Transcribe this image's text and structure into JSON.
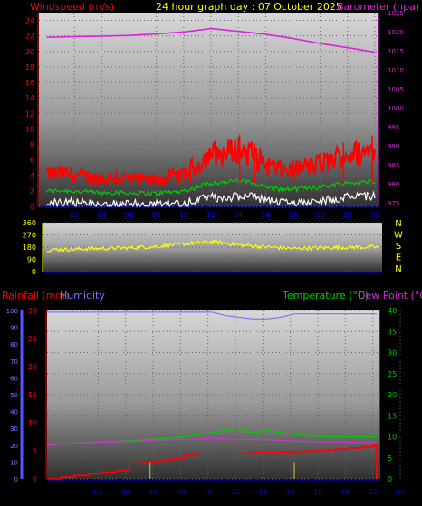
{
  "header": {
    "left_label": "Windspeed (m/s)",
    "center_label": "24 hour graph day : 07 October 2025",
    "right_label": "Barometer (hpa)"
  },
  "colors": {
    "wind": "#ff0000",
    "avg_wind": "#00cc00",
    "gust_low": "#ffffff",
    "barometer": "#dd22dd",
    "direction": "#ffff00",
    "rain": "#ff0000",
    "humidity": "#7777ff",
    "temperature": "#00cc00",
    "dewpoint": "#cc33cc",
    "hour_axis": "#0000ff",
    "rain_axis": "#ff0000",
    "humidity_axis": "#5555ff",
    "temp_axis": "#00cc00"
  },
  "chart_data": [
    {
      "type": "line",
      "title": "24 hour graph day : 07 October 2025",
      "x_ticks": [
        "02",
        "04",
        "06",
        "08",
        "10",
        "12",
        "14",
        "16",
        "18",
        "20",
        "22",
        "00"
      ],
      "y_left_label": "Windspeed (m/s)",
      "y_left_ticks": [
        0,
        2,
        4,
        6,
        8,
        10,
        12,
        14,
        16,
        18,
        20,
        22,
        24
      ],
      "y_left_range": [
        0,
        25
      ],
      "y_right_label": "Barometer (hpa)",
      "y_right_ticks": [
        975,
        980,
        985,
        990,
        995,
        1000,
        1005,
        1010,
        1015,
        1020,
        1025
      ],
      "y_right_range": [
        974,
        1025
      ],
      "series": [
        {
          "name": "Windspeed",
          "x": [
            0,
            1,
            2,
            3,
            4,
            5,
            6,
            7,
            8,
            9,
            10,
            11,
            12,
            13,
            14,
            15,
            16,
            17,
            18,
            19,
            20,
            21,
            22,
            23,
            24
          ],
          "values": [
            3,
            3.2,
            3,
            2.8,
            2.6,
            2.8,
            2.6,
            2.5,
            2.5,
            2.8,
            3,
            4,
            5,
            5,
            5.5,
            5,
            4,
            3.5,
            3.5,
            3.8,
            4,
            4.5,
            5,
            5,
            5.5
          ]
        },
        {
          "name": "Barometer",
          "x": [
            0,
            2,
            4,
            6,
            8,
            10,
            12,
            14,
            16,
            18,
            20,
            22,
            24
          ],
          "values": [
            1018.5,
            1018.7,
            1018.8,
            1019,
            1019.4,
            1019.9,
            1020.8,
            1020.1,
            1019.3,
            1018.2,
            1016.9,
            1015.8,
            1014.6
          ]
        }
      ]
    },
    {
      "type": "line",
      "x_ticks": [
        "02",
        "04",
        "06",
        "08",
        "10",
        "12",
        "14",
        "16",
        "18",
        "20",
        "22",
        "00"
      ],
      "y_left_ticks": [
        0,
        90,
        180,
        270,
        360
      ],
      "y_left_range": [
        0,
        360
      ],
      "y_right_ticks": [
        "N",
        "W",
        "S",
        "E",
        "N"
      ],
      "series": [
        {
          "name": "Wind direction",
          "x": [
            0,
            2,
            4,
            6,
            8,
            10,
            12,
            14,
            16,
            18,
            20,
            22,
            24
          ],
          "values": [
            160,
            165,
            170,
            175,
            185,
            205,
            220,
            195,
            180,
            170,
            175,
            180,
            180
          ]
        }
      ]
    },
    {
      "type": "line",
      "x_ticks": [
        "02",
        "04",
        "06",
        "08",
        "10",
        "12",
        "14",
        "16",
        "18",
        "20",
        "22",
        "00"
      ],
      "y_left_label": "Rainfall (mm)",
      "y_left_ticks": [
        0,
        5,
        10,
        15,
        20,
        25,
        30
      ],
      "y_left_range": [
        0,
        30
      ],
      "y_outer_label": "Humidity",
      "y_outer_ticks": [
        0,
        10,
        20,
        30,
        40,
        50,
        60,
        70,
        80,
        90,
        100
      ],
      "y_outer_range": [
        0,
        100
      ],
      "y_right_label": "Temperature (°C)",
      "y_right_label_2": "Dew Point (°C)",
      "y_right_ticks": [
        0,
        5,
        10,
        15,
        20,
        25,
        30,
        35,
        40
      ],
      "y_right_range": [
        0,
        40
      ],
      "series": [
        {
          "name": "Rainfall",
          "x": [
            0,
            1,
            2,
            3,
            4,
            5,
            6,
            7,
            8,
            9,
            10,
            11,
            12,
            13,
            14,
            15,
            16,
            17,
            18,
            19,
            20,
            21,
            22,
            23,
            23.8,
            24
          ],
          "values": [
            0,
            0.3,
            0.6,
            0.9,
            1.2,
            1.5,
            2.8,
            2.9,
            3.2,
            3.6,
            4.2,
            4.5,
            4.5,
            4.5,
            4.6,
            4.7,
            4.7,
            4.8,
            4.9,
            5,
            5.1,
            5.3,
            5.5,
            5.7,
            6,
            0
          ]
        },
        {
          "name": "Humidity",
          "x": [
            0,
            2,
            4,
            6,
            8,
            10,
            12,
            13,
            14,
            15,
            16,
            17,
            18,
            20,
            22,
            24
          ],
          "values": [
            99,
            99,
            99,
            99,
            99,
            99,
            99,
            97,
            96,
            95,
            95,
            96,
            98,
            98,
            98,
            98
          ]
        },
        {
          "name": "Temperature",
          "x": [
            0,
            2,
            4,
            6,
            8,
            10,
            12,
            13,
            14,
            15,
            16,
            17,
            18,
            20,
            22,
            24
          ],
          "values": [
            8,
            8.5,
            8.8,
            9,
            9.5,
            10,
            11,
            11.5,
            11.8,
            11,
            11.5,
            11,
            10.5,
            10,
            10,
            10
          ]
        },
        {
          "name": "Dew Point",
          "x": [
            0,
            2,
            4,
            6,
            8,
            10,
            12,
            14,
            16,
            18,
            20,
            22,
            24
          ],
          "values": [
            8,
            8.5,
            8.7,
            8.9,
            9.2,
            9.4,
            9.6,
            9.4,
            9.3,
            9,
            8.8,
            8.7,
            8.6
          ]
        }
      ]
    }
  ]
}
